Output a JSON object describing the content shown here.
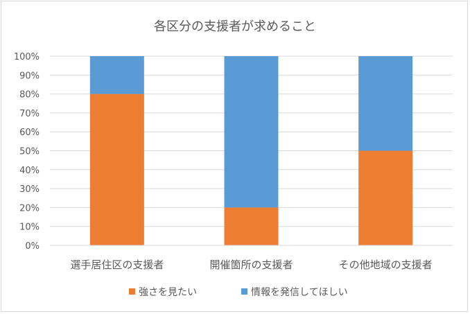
{
  "chart_data": {
    "type": "bar",
    "stacked": true,
    "title": "各区分の支援者が求めること",
    "categories": [
      "選手居住区の支援者",
      "開催箇所の支援者",
      "その他地域の支援者"
    ],
    "series": [
      {
        "name": "強さを見たい",
        "values": [
          80,
          20,
          50
        ],
        "color": "#ed7d31"
      },
      {
        "name": "情報を発信してほしい",
        "values": [
          20,
          80,
          50
        ],
        "color": "#5b9bd5"
      }
    ],
    "ylim": [
      0,
      100
    ],
    "yticks": [
      "0%",
      "10%",
      "20%",
      "30%",
      "40%",
      "50%",
      "60%",
      "70%",
      "80%",
      "90%",
      "100%"
    ],
    "grid": true,
    "legend_position": "bottom"
  }
}
